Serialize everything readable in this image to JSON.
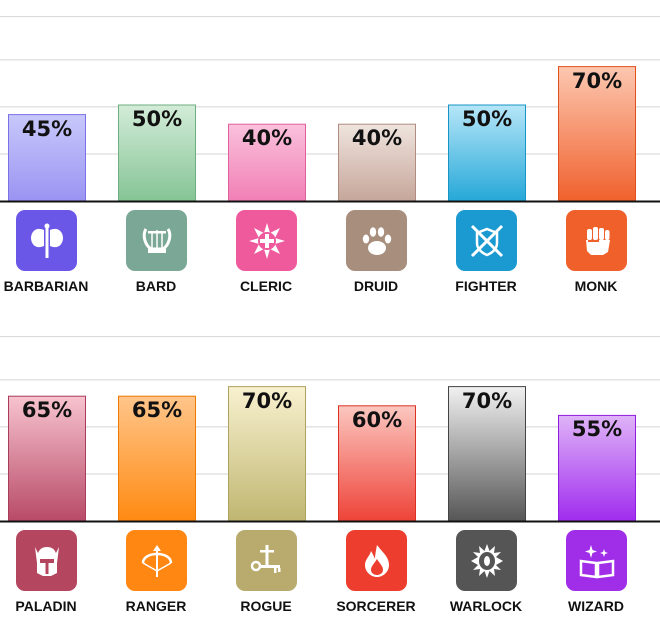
{
  "chart_data": [
    {
      "type": "bar",
      "categories": [
        "BARBARIAN",
        "BARD",
        "CLERIC",
        "DRUID",
        "FIGHTER",
        "MONK"
      ],
      "values": [
        45,
        50,
        40,
        40,
        50,
        70
      ],
      "labels": [
        "45%",
        "50%",
        "40%",
        "40%",
        "50%",
        "70%"
      ],
      "ylim": [
        0,
        80
      ],
      "grid": true,
      "colors": [
        {
          "top": "#c8c8fb",
          "bottom": "#9a94f2",
          "border": "#7a72e6"
        },
        {
          "top": "#d3ecd8",
          "bottom": "#85c495",
          "border": "#6fae80"
        },
        {
          "top": "#fac1dc",
          "bottom": "#f17fb5",
          "border": "#e0609d"
        },
        {
          "top": "#efe4de",
          "bottom": "#c6a69a",
          "border": "#b08d80"
        },
        {
          "top": "#b6e6f8",
          "bottom": "#26a8d8",
          "border": "#1795c6"
        },
        {
          "top": "#fcc7b0",
          "bottom": "#f0612d",
          "border": "#e04f1c"
        }
      ],
      "icons": [
        {
          "name": "double-axe-icon",
          "bg": "#6a57e8"
        },
        {
          "name": "lyre-icon",
          "bg": "#7ba796"
        },
        {
          "name": "holy-cross-icon",
          "bg": "#ef5a9d"
        },
        {
          "name": "paw-icon",
          "bg": "#a88e7c"
        },
        {
          "name": "crossed-swords-shield-icon",
          "bg": "#1b9ad1"
        },
        {
          "name": "fist-icon",
          "bg": "#f0602b"
        }
      ]
    },
    {
      "type": "bar",
      "categories": [
        "PALADIN",
        "RANGER",
        "ROGUE",
        "SORCERER",
        "WARLOCK",
        "WIZARD"
      ],
      "values": [
        65,
        65,
        70,
        60,
        70,
        55
      ],
      "labels": [
        "65%",
        "65%",
        "70%",
        "60%",
        "70%",
        "55%"
      ],
      "ylim": [
        0,
        80
      ],
      "grid": true,
      "colors": [
        {
          "top": "#f7c3ce",
          "bottom": "#b84a68",
          "border": "#a83c5a"
        },
        {
          "top": "#ffc58a",
          "bottom": "#ff8a12",
          "border": "#f07a00"
        },
        {
          "top": "#f8f1cf",
          "bottom": "#c0b671",
          "border": "#aea261"
        },
        {
          "top": "#fbc7c0",
          "bottom": "#ee4338",
          "border": "#dc3024"
        },
        {
          "top": "#f1f1f1",
          "bottom": "#565656",
          "border": "#444444"
        },
        {
          "top": "#dfb3f8",
          "bottom": "#a02cee",
          "border": "#8f1ce0"
        }
      ],
      "icons": [
        {
          "name": "winged-helmet-icon",
          "bg": "#b5465f"
        },
        {
          "name": "bow-arrow-icon",
          "bg": "#ff8712"
        },
        {
          "name": "dagger-key-icon",
          "bg": "#b8ab6d"
        },
        {
          "name": "flame-icon",
          "bg": "#ec3d2e"
        },
        {
          "name": "eye-sun-icon",
          "bg": "#555555"
        },
        {
          "name": "spellbook-icon",
          "bg": "#a02ee8"
        }
      ]
    }
  ]
}
